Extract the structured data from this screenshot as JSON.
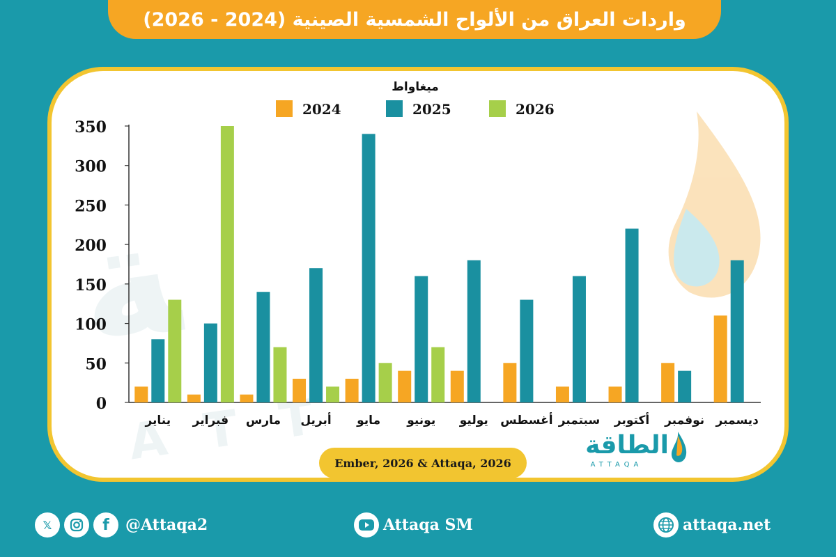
{
  "title": "واردات العراق من الألواح الشمسية الصينية (2024 - 2026)",
  "source": "Ember, 2026 & Attaqa, 2026",
  "brand": {
    "arabic": "الطاقة",
    "latin": "ATTAQA"
  },
  "footer": {
    "social_handle": "@Attaqa2",
    "youtube": "Attaqa SM",
    "website": "attaqa.net",
    "icons": [
      "x-icon",
      "instagram-icon",
      "facebook-icon",
      "youtube-icon",
      "globe-icon"
    ]
  },
  "colors": {
    "background": "#1a9aaa",
    "accent": "#f6a623",
    "frame": "#f2c530",
    "series_2024": "#f6a623",
    "series_2025": "#1a90a0",
    "series_2026": "#a6cf4a"
  },
  "chart_data": {
    "type": "bar",
    "unit_label": "ميغاواط",
    "categories": [
      "يناير",
      "فبراير",
      "مارس",
      "أبريل",
      "مايو",
      "يونيو",
      "يوليو",
      "أغسطس",
      "سبتمبر",
      "أكتوبر",
      "نوفمبر",
      "ديسمبر"
    ],
    "series": [
      {
        "name": "2024",
        "values": [
          20,
          10,
          10,
          30,
          30,
          40,
          40,
          50,
          20,
          20,
          50,
          110
        ]
      },
      {
        "name": "2025",
        "values": [
          80,
          100,
          140,
          170,
          340,
          160,
          180,
          130,
          160,
          220,
          40,
          180
        ]
      },
      {
        "name": "2026",
        "values": [
          130,
          350,
          70,
          20,
          50,
          70,
          null,
          null,
          null,
          null,
          null,
          null
        ]
      }
    ],
    "ylim": [
      0,
      350
    ],
    "yticks": [
      0,
      50,
      100,
      150,
      200,
      250,
      300,
      350
    ],
    "legend_position": "top-center",
    "grid": false
  }
}
